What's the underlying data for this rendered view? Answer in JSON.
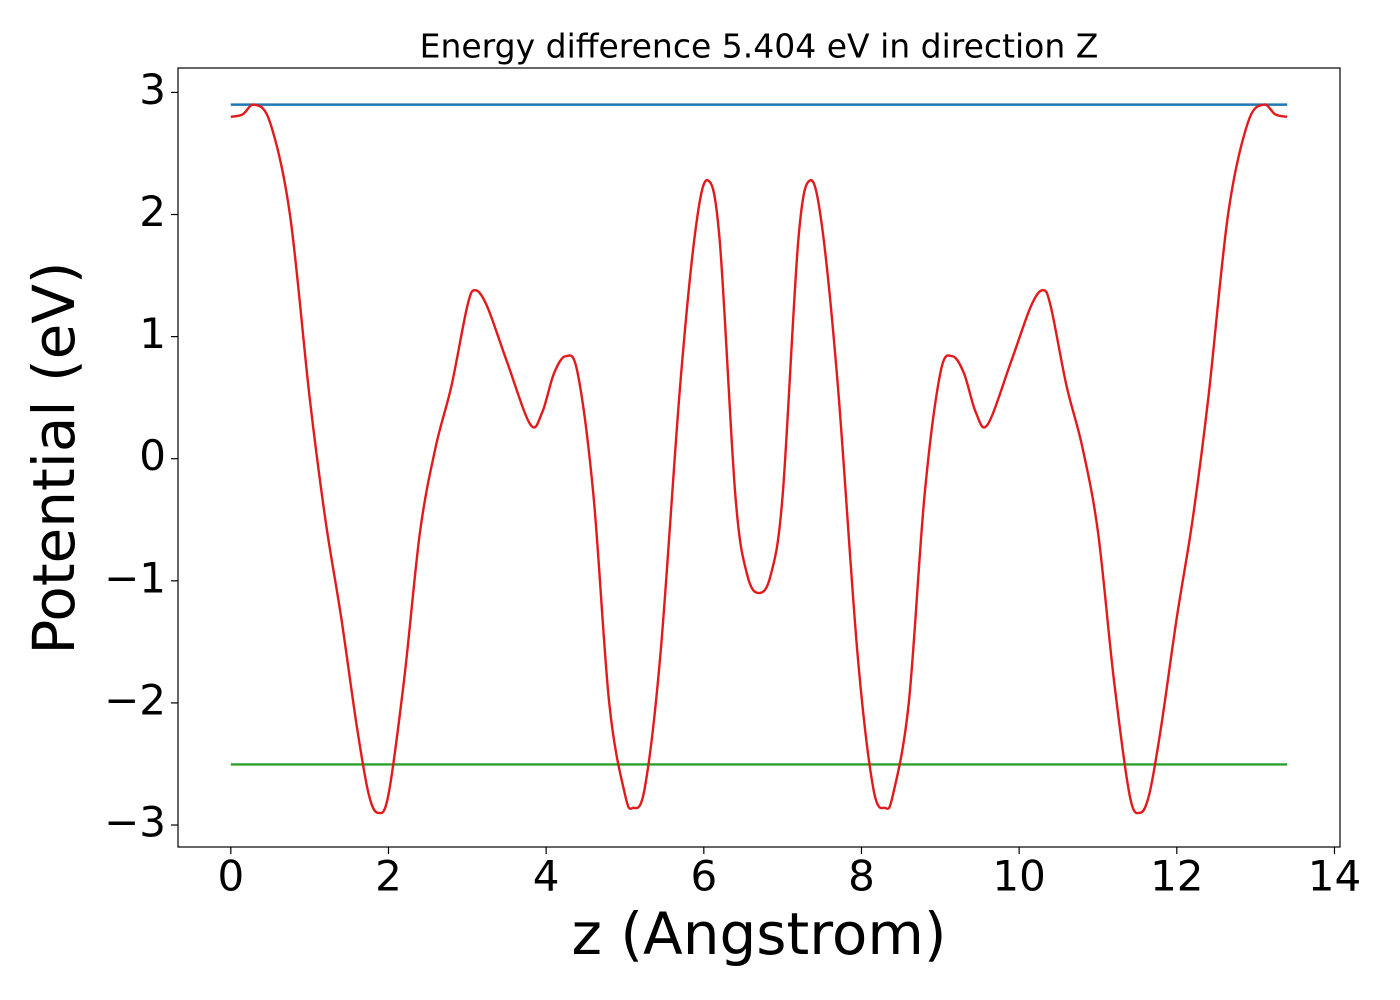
{
  "chart_data": {
    "type": "line",
    "title": "Energy difference 5.404 eV in direction Z",
    "xlabel": "z (Angstrom)",
    "ylabel": "Potential (eV)",
    "xlim": [
      -0.67,
      14.07
    ],
    "ylim": [
      -3.18,
      3.2
    ],
    "xticks": [
      0,
      2,
      4,
      6,
      8,
      10,
      12,
      14
    ],
    "yticks": [
      {
        "value": -3,
        "label": "−3"
      },
      {
        "value": -2,
        "label": "−2"
      },
      {
        "value": -1,
        "label": "−1"
      },
      0,
      1,
      2,
      3
    ],
    "grid": false,
    "series": [
      {
        "color": "#1f77b4",
        "x": [
          0,
          13.4
        ],
        "values": [
          2.9,
          2.9
        ]
      },
      {
        "color": "#2ca02c",
        "x": [
          0,
          13.4
        ],
        "values": [
          -2.504,
          -2.504
        ]
      },
      {
        "color": "#e31a1c",
        "x": [
          0,
          0.15,
          0.3,
          0.5,
          0.75,
          1.0,
          1.2,
          1.4,
          1.6,
          1.75,
          1.87,
          2.0,
          2.2,
          2.4,
          2.6,
          2.8,
          3.0,
          3.1,
          3.25,
          3.5,
          3.8,
          3.95,
          4.1,
          4.25,
          4.4,
          4.6,
          4.8,
          5.0,
          5.1,
          5.25,
          5.45,
          5.7,
          5.9,
          6.05,
          6.2,
          6.4,
          6.55,
          6.7,
          6.85,
          7.0,
          7.2,
          7.35,
          7.5,
          7.7,
          7.95,
          8.15,
          8.3,
          8.4,
          8.6,
          8.8,
          9.0,
          9.15,
          9.3,
          9.45,
          9.6,
          9.9,
          10.15,
          10.3,
          10.4,
          10.6,
          10.8,
          11.0,
          11.2,
          11.4,
          11.53,
          11.65,
          11.8,
          12.0,
          12.2,
          12.4,
          12.65,
          12.9,
          13.1,
          13.25,
          13.4
        ],
        "values": [
          2.8,
          2.82,
          2.9,
          2.75,
          2.0,
          0.5,
          -0.5,
          -1.3,
          -2.2,
          -2.75,
          -2.9,
          -2.75,
          -1.8,
          -0.6,
          0.1,
          0.6,
          1.25,
          1.38,
          1.25,
          0.8,
          0.28,
          0.38,
          0.7,
          0.84,
          0.7,
          -0.3,
          -2.0,
          -2.75,
          -2.86,
          -2.7,
          -1.6,
          0.6,
          1.9,
          2.28,
          1.8,
          -0.3,
          -0.95,
          -1.1,
          -0.95,
          -0.3,
          1.8,
          2.28,
          1.9,
          0.6,
          -1.6,
          -2.7,
          -2.86,
          -2.75,
          -2.0,
          -0.3,
          0.7,
          0.84,
          0.7,
          0.38,
          0.28,
          0.8,
          1.25,
          1.38,
          1.25,
          0.6,
          0.1,
          -0.6,
          -1.8,
          -2.75,
          -2.9,
          -2.75,
          -2.2,
          -1.3,
          -0.5,
          0.5,
          2.0,
          2.75,
          2.9,
          2.82,
          2.8
        ]
      }
    ]
  }
}
